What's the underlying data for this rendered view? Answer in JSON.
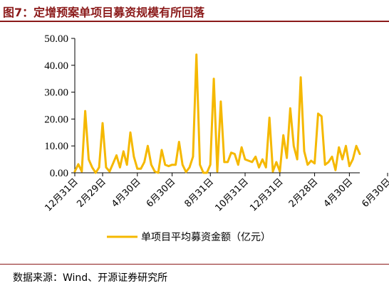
{
  "figure": {
    "title": "图7：定增预案单项目募资规模有所回落",
    "source": "数据来源：Wind、开源证券研究所"
  },
  "chart_data": {
    "type": "line",
    "ylim": [
      0,
      50
    ],
    "yticks": [
      "0.00",
      "10.00",
      "20.00",
      "30.00",
      "40.00",
      "50.00"
    ],
    "ytick_values": [
      0,
      10,
      20,
      30,
      40,
      50
    ],
    "x_tick_labels": [
      "12月31日",
      "2月29日",
      "4月30日",
      "6月30日",
      "8月31日",
      "10月31日",
      "12月31日",
      "2月28日",
      "4月30日",
      "6月30日"
    ],
    "x_tick_index": [
      0,
      8,
      18,
      28,
      39,
      49,
      59,
      69,
      79,
      90
    ],
    "series": [
      {
        "name": "单项目平均募资金额（亿元）",
        "color": "#f5b800",
        "values": [
          0.5,
          3.2,
          0.5,
          23,
          5,
          2,
          0,
          2,
          18.5,
          2,
          0.5,
          3.5,
          6.5,
          2,
          8,
          3,
          15,
          6,
          1.5,
          1.5,
          4,
          10,
          3,
          0.5,
          0,
          8.5,
          3,
          2.5,
          3,
          3,
          11.5,
          3,
          0.3,
          2,
          6,
          44,
          3,
          0,
          0,
          3,
          35,
          0.5,
          26.5,
          4,
          4,
          7.5,
          7,
          3,
          9.5,
          5,
          4.5,
          4,
          6,
          2,
          5,
          2,
          20.5,
          0.5,
          4,
          0.5,
          14,
          5.5,
          24,
          10,
          5,
          35.5,
          8,
          3,
          4.5,
          3.5,
          22,
          21,
          3,
          4,
          6,
          1,
          9.5,
          5,
          10,
          2.5,
          5,
          10,
          7
        ]
      }
    ],
    "legend_position": "bottom-center",
    "grid": false
  }
}
